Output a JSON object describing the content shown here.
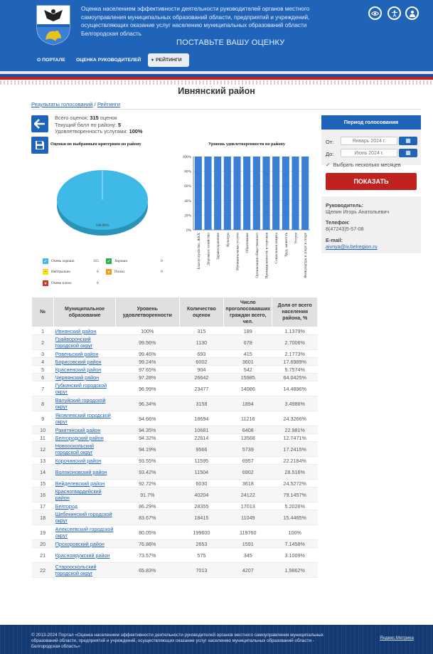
{
  "header": {
    "title": "Оценка населением эффективности деятельности руководителей органов местного самоуправления муниципальных образований области, предприятий и учреждений, осуществляющих оказание услуг населению муниципальных образований области Белгородская область",
    "rate_slogan": "ПОСТАВЬТЕ ВАШУ ОЦЕНКУ",
    "nav": [
      {
        "label": "О ПОРТАЛЕ"
      },
      {
        "label": "ОЦЕНКА РУКОВОДИТЕЛЕЙ"
      },
      {
        "label": "РЕЙТИНГИ"
      }
    ],
    "icons": [
      "eye-icon",
      "accessibility-icon",
      "user-icon"
    ]
  },
  "page": {
    "title": "Ивнянский район",
    "breadcrumb": {
      "link": "Результаты голосований",
      "sep": " / ",
      "current": "Рейтинги"
    }
  },
  "summary": {
    "total_label": "Всего оценок:",
    "total_value": "315",
    "total_unit": "оценок",
    "score_label": "Текущий балл по району:",
    "score_value": "5",
    "satisfaction_label": "Удовлетворенность услугами:",
    "satisfaction_value": "100%"
  },
  "pie": {
    "title": "Оценки по выбранным критериям по району",
    "slice_label": "100.00%",
    "color": "#3fb9e6",
    "legend": [
      {
        "label": "Очень хорошо",
        "count": "315",
        "color": "#3fb9e6",
        "icon": "check"
      },
      {
        "label": "Хорошо",
        "count": "0",
        "color": "#2bb34a",
        "icon": "check"
      },
      {
        "label": "Нейтрально",
        "count": "0",
        "color": "#f0e020",
        "icon": "neutral"
      },
      {
        "label": "Плохо",
        "count": "0",
        "color": "#f39c12",
        "icon": "down"
      },
      {
        "label": "Очень плохо",
        "count": "0",
        "color": "#d0312d",
        "icon": "down"
      }
    ]
  },
  "chart_data": {
    "type": "bar",
    "title": "Уровень удовлетворенности по району",
    "categories": [
      "Благоустройство, ЖКХ",
      "Дорожное хозяйство",
      "Здравоохранение",
      "Культура",
      "Муниципальные услуги",
      "Образование",
      "Организация общественного",
      "Промышленность и торговля",
      "Социальная защита",
      "Труд, занятость",
      "Услуги",
      "Физкультура и спорт и спорт"
    ],
    "values": [
      100,
      100,
      100,
      100,
      100,
      100,
      100,
      100,
      100,
      100,
      100,
      100
    ],
    "yticks": [
      "0%",
      "20%",
      "40%",
      "60%",
      "80%",
      "100%"
    ],
    "ylim": [
      0,
      100
    ],
    "color": "#3a7fd4",
    "grid": true
  },
  "period": {
    "title": "Период голосования",
    "from_label": "От:",
    "from_value": "Январь 2024 г.",
    "to_label": "До:",
    "to_value": "Июнь 2024 г.",
    "multi_month_label": "Выбрать несколько месяцев",
    "show_button": "ПОКАЗАТЬ"
  },
  "contact": {
    "head_label": "Руководитель:",
    "head_value": "Щепин Игорь Анатольевич",
    "phone_label": "Телефон:",
    "phone_value": "8(47243)5-57-08",
    "email_label": "E-mail:",
    "email_value": "aivnya@iv.belregion.ru"
  },
  "table": {
    "headers": [
      "№",
      "Муниципальное образование",
      "Уровень удовлетворенности",
      "Количество оценок",
      "Число проголосовавших граждан всего, чел.",
      "Доля от всего населения района, %"
    ],
    "rows": [
      [
        "1",
        "Ивнянский район",
        "100%",
        "315",
        "189",
        "1.1379%"
      ],
      [
        "2",
        "Грайворонский городской округ",
        "99.56%",
        "1130",
        "678",
        "2.7006%"
      ],
      [
        "3",
        "Ровеньский район",
        "99.46%",
        "693",
        "415",
        "2.1773%"
      ],
      [
        "4",
        "Борисовский район",
        "99.24%",
        "6002",
        "3601",
        "17.6989%"
      ],
      [
        "5",
        "Красненский район",
        "97.65%",
        "904",
        "542",
        "5.7574%"
      ],
      [
        "6",
        "Чернянский район",
        "97.28%",
        "26642",
        "15985",
        "64.0425%"
      ],
      [
        "7",
        "Губкинский городской округ",
        "96.99%",
        "23477",
        "14086",
        "14.4896%"
      ],
      [
        "8",
        "Валуйский городской округ",
        "96.34%",
        "3158",
        "1894",
        "3.4986%"
      ],
      [
        "9",
        "Яковлевский городской округ",
        "94.66%",
        "18694",
        "11216",
        "24.3266%"
      ],
      [
        "10",
        "Ракитянский район",
        "94.35%",
        "10681",
        "6408",
        "22.981%"
      ],
      [
        "11",
        "Белгородский район",
        "94.32%",
        "22614",
        "13568",
        "12.7471%"
      ],
      [
        "12",
        "Новооскольский городской округ",
        "94.19%",
        "9566",
        "5739",
        "17.2415%"
      ],
      [
        "13",
        "Корочанский район",
        "93.55%",
        "11595",
        "6957",
        "22.2184%"
      ],
      [
        "14",
        "Волоконовский район",
        "93.42%",
        "11504",
        "6902",
        "28.516%"
      ],
      [
        "15",
        "Вейделевский район",
        "92.72%",
        "6030",
        "3618",
        "24.5272%"
      ],
      [
        "16",
        "Красногвардейский район",
        "91.7%",
        "40204",
        "24122",
        "79.1457%"
      ],
      [
        "17",
        "Белгород",
        "86.29%",
        "28355",
        "17013",
        "5.2026%"
      ],
      [
        "18",
        "Шебекинский городской округ",
        "83.67%",
        "18415",
        "11049",
        "15.4465%"
      ],
      [
        "19",
        "Алексеевский городской округ",
        "80.05%",
        "199600",
        "119760",
        "100%"
      ],
      [
        "20",
        "Прохоровский район",
        "76.86%",
        "2653",
        "1591",
        "7.1458%"
      ],
      [
        "21",
        "Краснояружский район",
        "73.57%",
        "575",
        "345",
        "3.1009%"
      ],
      [
        "22",
        "Старооскольский городской округ",
        "65.83%",
        "7013",
        "4207",
        "1.9862%"
      ]
    ]
  },
  "footer": {
    "copyright": "© 2013-2024 Портал «Оценка населением эффективности деятельности руководителей органов местного самоуправления муниципальных образований области, предприятий и учреждений, осуществляющих оказание услуг населению муниципальных образований области - Белгородская область»",
    "metrika": "Яндекс.Метрика"
  }
}
